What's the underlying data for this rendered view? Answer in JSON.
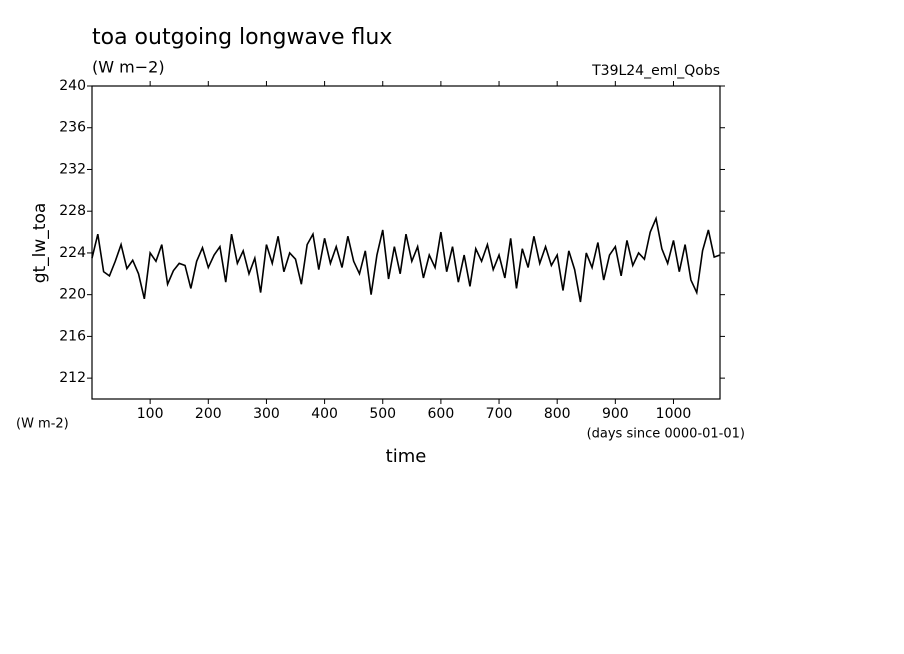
{
  "chart_data": {
    "type": "line",
    "title": "toa outgoing longwave flux",
    "subtitle": "(W m−2)",
    "run_label": "T39L24_eml_Qobs",
    "y_axis_label": "gt_lw_toa",
    "y_unit_label": "(W m-2)",
    "x_unit_label": "(days since 0000-01-01)",
    "x_axis_label": "time",
    "xlim": [
      0,
      1080
    ],
    "ylim": [
      210,
      240
    ],
    "xticks": [
      100,
      200,
      300,
      400,
      500,
      600,
      700,
      800,
      900,
      1000
    ],
    "yticks": [
      212,
      216,
      220,
      224,
      228,
      232,
      236,
      240
    ],
    "x": [
      0,
      10,
      20,
      30,
      40,
      50,
      60,
      70,
      80,
      90,
      100,
      110,
      120,
      130,
      140,
      150,
      160,
      170,
      180,
      190,
      200,
      210,
      220,
      230,
      240,
      250,
      260,
      270,
      280,
      290,
      300,
      310,
      320,
      330,
      340,
      350,
      360,
      370,
      380,
      390,
      400,
      410,
      420,
      430,
      440,
      450,
      460,
      470,
      480,
      490,
      500,
      510,
      520,
      530,
      540,
      550,
      560,
      570,
      580,
      590,
      600,
      610,
      620,
      630,
      640,
      650,
      660,
      670,
      680,
      690,
      700,
      710,
      720,
      730,
      740,
      750,
      760,
      770,
      780,
      790,
      800,
      810,
      820,
      830,
      840,
      850,
      860,
      870,
      880,
      890,
      900,
      910,
      920,
      930,
      940,
      950,
      960,
      970,
      980,
      990,
      1000,
      1010,
      1020,
      1030,
      1040,
      1050,
      1060,
      1070,
      1080
    ],
    "series": [
      {
        "color": "#000000",
        "values": [
          223.5,
          225.8,
          222.2,
          221.8,
          223.2,
          224.8,
          222.5,
          223.3,
          222.0,
          219.6,
          224.0,
          223.2,
          224.8,
          221.0,
          222.3,
          223.0,
          222.8,
          220.6,
          223.2,
          224.5,
          222.6,
          223.8,
          224.6,
          221.2,
          225.8,
          223.0,
          224.2,
          222.0,
          223.5,
          220.2,
          224.8,
          223.0,
          225.6,
          222.2,
          224.0,
          223.4,
          221.0,
          224.8,
          225.8,
          222.4,
          225.4,
          223.0,
          224.6,
          222.6,
          225.6,
          223.2,
          222.0,
          224.2,
          220.0,
          223.8,
          226.2,
          221.5,
          224.6,
          222.0,
          225.8,
          223.2,
          224.6,
          221.6,
          223.8,
          222.6,
          226.0,
          222.2,
          224.6,
          221.2,
          223.8,
          220.8,
          224.4,
          223.2,
          224.8,
          222.4,
          223.8,
          221.6,
          225.4,
          220.6,
          224.4,
          222.6,
          225.6,
          223.0,
          224.6,
          222.8,
          223.8,
          220.4,
          224.2,
          222.4,
          219.3,
          224.0,
          222.6,
          225.0,
          221.4,
          223.8,
          224.6,
          221.8,
          225.2,
          222.8,
          224.0,
          223.4,
          226.0,
          227.3,
          224.4,
          223.0,
          225.2,
          222.2,
          224.8,
          221.4,
          220.2,
          224.2,
          226.2,
          223.6,
          223.8
        ]
      }
    ]
  }
}
